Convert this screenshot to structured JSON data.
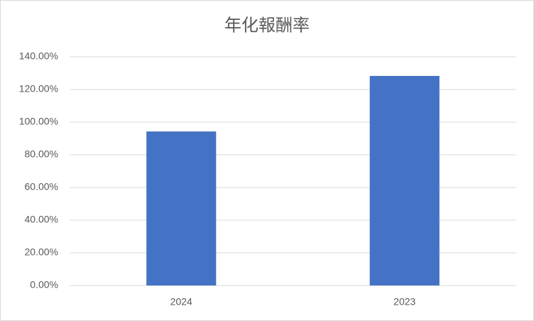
{
  "chart_data": {
    "type": "bar",
    "title": "年化報酬率",
    "categories": [
      "2024",
      "2023"
    ],
    "values": [
      94.3,
      128.3
    ],
    "color": "#4472c4",
    "ylim": [
      0,
      140
    ],
    "yticks": [
      {
        "value": 0,
        "label": "0.00%"
      },
      {
        "value": 20,
        "label": "20.00%"
      },
      {
        "value": 40,
        "label": "40.00%"
      },
      {
        "value": 60,
        "label": "60.00%"
      },
      {
        "value": 80,
        "label": "80.00%"
      },
      {
        "value": 100,
        "label": "100.00%"
      },
      {
        "value": 120,
        "label": "120.00%"
      },
      {
        "value": 140,
        "label": "140.00%"
      }
    ],
    "grid": true
  }
}
